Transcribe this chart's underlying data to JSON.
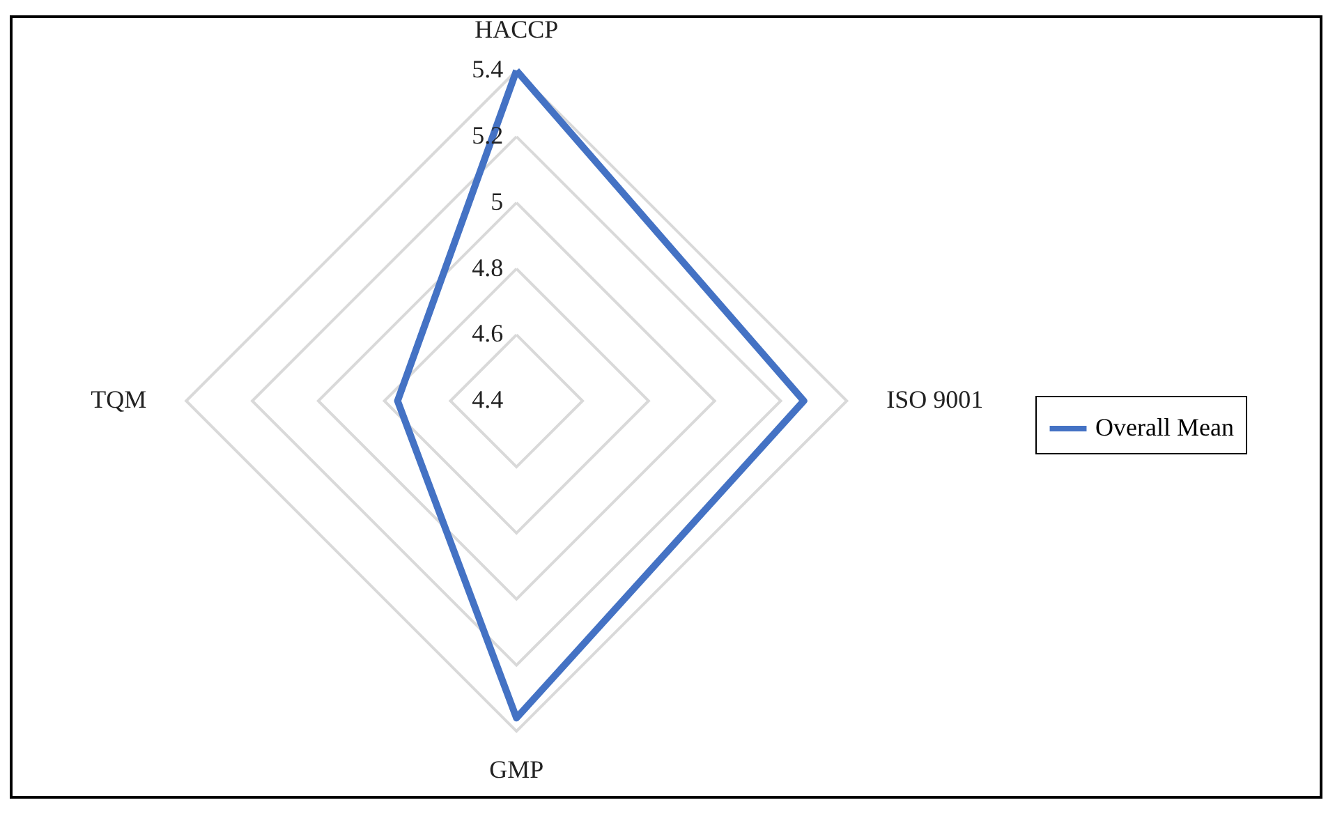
{
  "chart_data": {
    "type": "radar",
    "categories": [
      "HACCP",
      "ISO 9001",
      "GMP",
      "TQM"
    ],
    "series": [
      {
        "name": "Overall Mean",
        "color": "#4472c4",
        "values": [
          5.4,
          5.27,
          5.36,
          4.76
        ]
      }
    ],
    "ylim": [
      4.4,
      5.4
    ],
    "yticks": [
      4.4,
      4.6,
      4.8,
      5,
      5.2,
      5.4
    ],
    "grid": true,
    "legend": "right"
  }
}
